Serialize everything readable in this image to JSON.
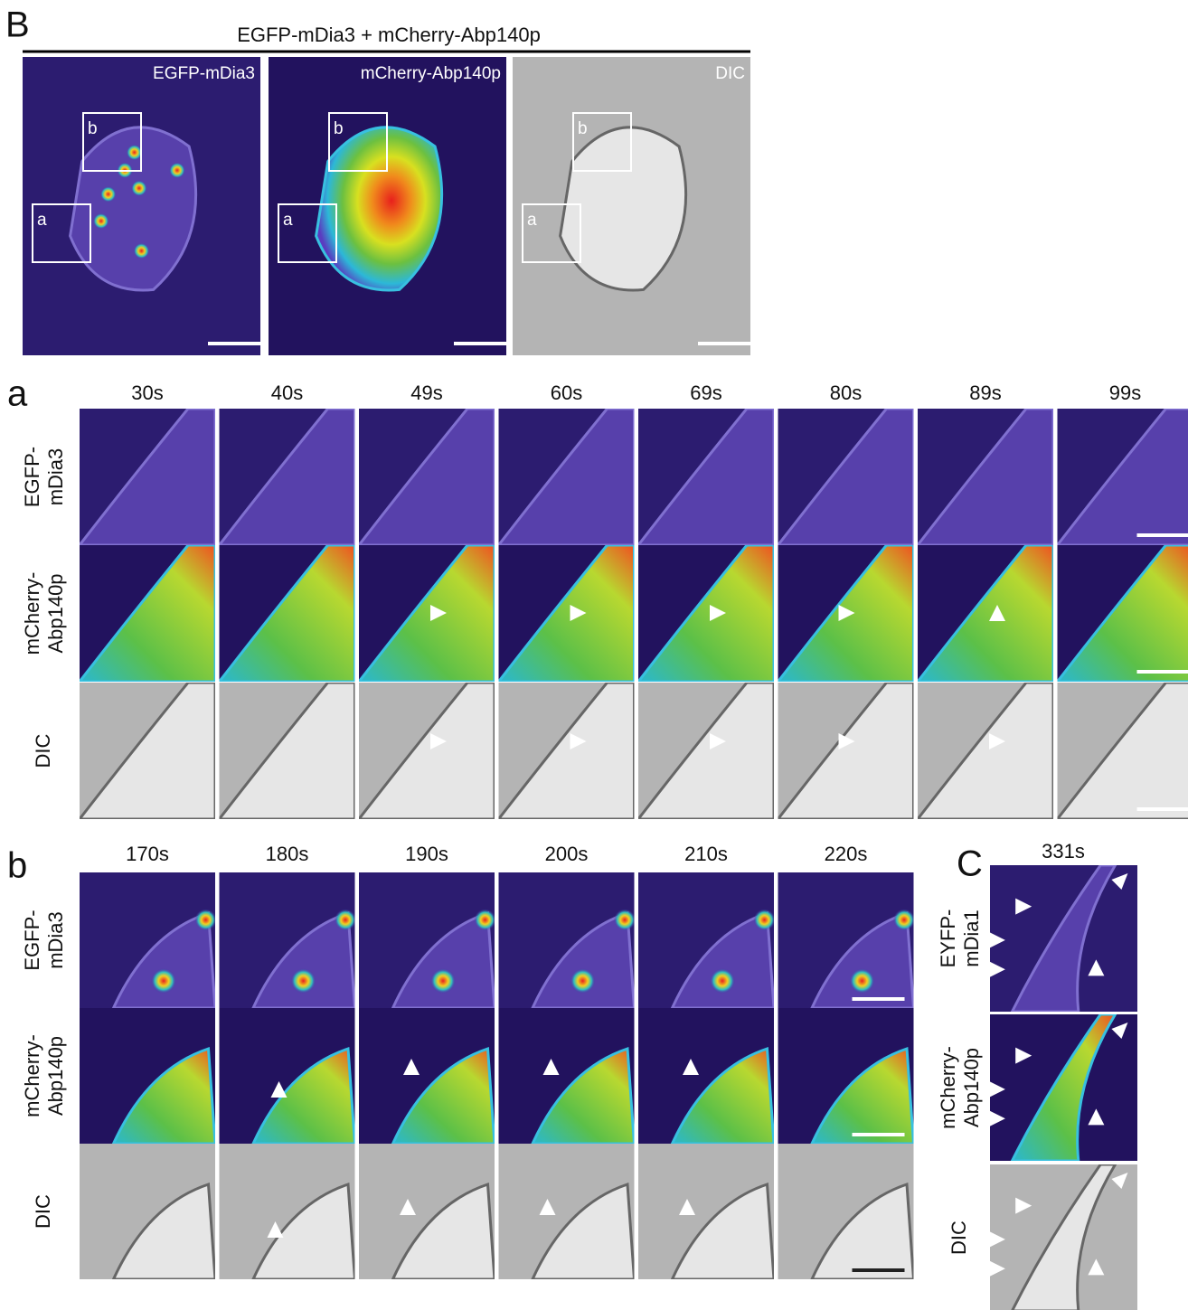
{
  "panel_B": {
    "label": "B",
    "title": "EGFP-mDia3 + mCherry-Abp140p",
    "images": [
      {
        "label": "EGFP-mDia3",
        "boxes": [
          "b",
          "a"
        ]
      },
      {
        "label": "mCherry-Abp140p",
        "boxes": [
          "b",
          "a"
        ]
      },
      {
        "label": "DIC",
        "boxes": [
          "b",
          "a"
        ]
      }
    ]
  },
  "panel_a": {
    "label": "a",
    "times": [
      "30s",
      "40s",
      "49s",
      "60s",
      "69s",
      "80s",
      "89s",
      "99s"
    ],
    "row_labels": [
      [
        "EGFP-",
        "mDia3"
      ],
      [
        "mCherry-",
        "Abp140p"
      ],
      [
        "DIC"
      ]
    ]
  },
  "panel_b": {
    "label": "b",
    "times": [
      "170s",
      "180s",
      "190s",
      "200s",
      "210s",
      "220s"
    ],
    "row_labels": [
      [
        "EGFP-",
        "mDia3"
      ],
      [
        "mCherry-",
        "Abp140p"
      ],
      [
        "DIC"
      ]
    ]
  },
  "panel_C": {
    "label": "C",
    "time": "331s",
    "row_labels": [
      [
        "EYFP-",
        "mDia1"
      ],
      [
        "mCherry-",
        "Abp140p"
      ],
      [
        "DIC"
      ]
    ]
  }
}
